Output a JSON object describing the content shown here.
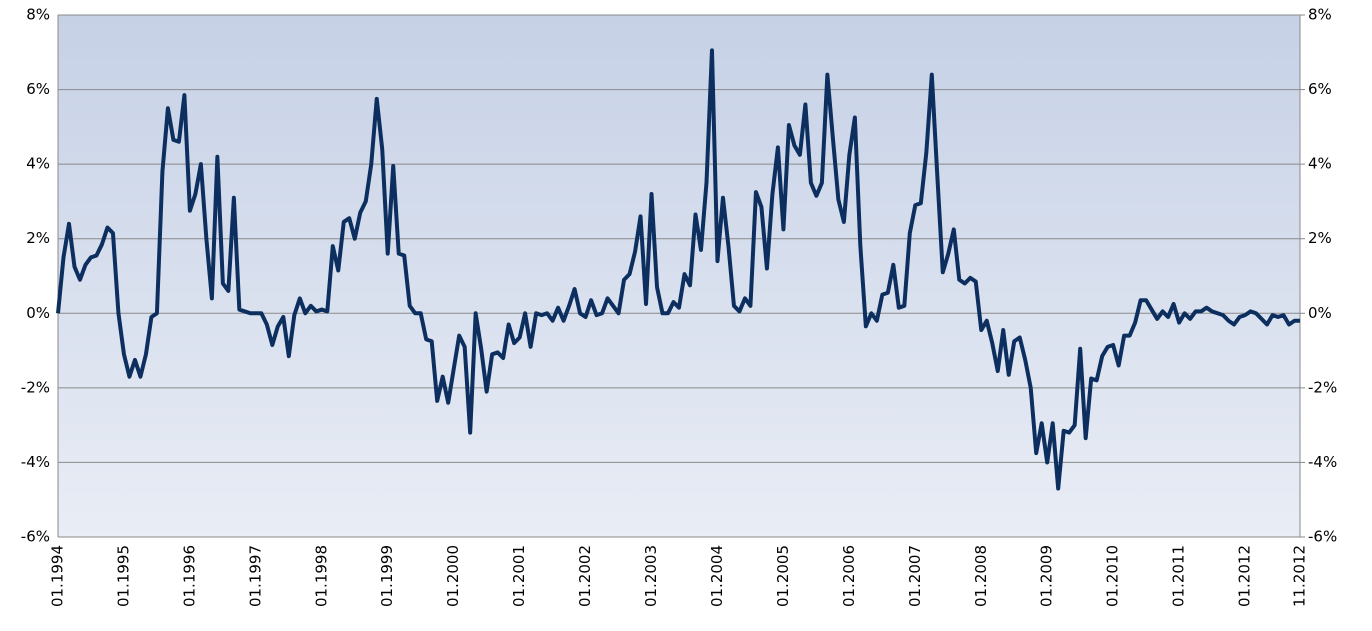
{
  "chart_data": {
    "type": "line",
    "categories": [
      "01.1994",
      null,
      null,
      null,
      null,
      null,
      null,
      null,
      null,
      null,
      null,
      null,
      "01.1995",
      null,
      null,
      null,
      null,
      null,
      null,
      null,
      null,
      null,
      null,
      null,
      "01.1996",
      null,
      null,
      null,
      null,
      null,
      null,
      null,
      null,
      null,
      null,
      null,
      "01.1997",
      null,
      null,
      null,
      null,
      null,
      null,
      null,
      null,
      null,
      null,
      null,
      "01.1998",
      null,
      null,
      null,
      null,
      null,
      null,
      null,
      null,
      null,
      null,
      null,
      "01.1999",
      null,
      null,
      null,
      null,
      null,
      null,
      null,
      null,
      null,
      null,
      null,
      "01.2000",
      null,
      null,
      null,
      null,
      null,
      null,
      null,
      null,
      null,
      null,
      null,
      "01.2001",
      null,
      null,
      null,
      null,
      null,
      null,
      null,
      null,
      null,
      null,
      null,
      "01.2002",
      null,
      null,
      null,
      null,
      null,
      null,
      null,
      null,
      null,
      null,
      null,
      "01.2003",
      null,
      null,
      null,
      null,
      null,
      null,
      null,
      null,
      null,
      null,
      null,
      "01.2004",
      null,
      null,
      null,
      null,
      null,
      null,
      null,
      null,
      null,
      null,
      null,
      "01.2005",
      null,
      null,
      null,
      null,
      null,
      null,
      null,
      null,
      null,
      null,
      null,
      "01.2006",
      null,
      null,
      null,
      null,
      null,
      null,
      null,
      null,
      null,
      null,
      null,
      "01.2007",
      null,
      null,
      null,
      null,
      null,
      null,
      null,
      null,
      null,
      null,
      null,
      "01.2008",
      null,
      null,
      null,
      null,
      null,
      null,
      null,
      null,
      null,
      null,
      null,
      "01.2009",
      null,
      null,
      null,
      null,
      null,
      null,
      null,
      null,
      null,
      null,
      null,
      "01.2010",
      null,
      null,
      null,
      null,
      null,
      null,
      null,
      null,
      null,
      null,
      null,
      "01.2011",
      null,
      null,
      null,
      null,
      null,
      null,
      null,
      null,
      null,
      null,
      null,
      "01.2012",
      null,
      null,
      null,
      null,
      null,
      null,
      null,
      null,
      null,
      "11.2012"
    ],
    "series": [
      {
        "color": "#0d2f5f",
        "values": [
          0,
          1.5,
          2.4,
          1.25,
          0.9,
          1.3,
          1.5,
          1.55,
          1.85,
          2.3,
          2.15,
          0,
          -1.1,
          -1.7,
          -1.25,
          -1.7,
          -1.1,
          -0.1,
          0,
          3.8,
          5.5,
          4.65,
          4.6,
          5.85,
          2.75,
          3.2,
          4.0,
          2.0,
          0.4,
          4.2,
          0.8,
          0.6,
          3.1,
          0.1,
          0.05,
          0,
          0,
          0,
          -0.3,
          -0.85,
          -0.35,
          -0.1,
          -1.15,
          -0.05,
          0.4,
          0,
          0.2,
          0.05,
          0.1,
          0.05,
          1.8,
          1.15,
          2.45,
          2.55,
          2.0,
          2.7,
          3.0,
          4.0,
          5.75,
          4.4,
          1.6,
          3.95,
          1.6,
          1.55,
          0.2,
          0,
          0,
          -0.7,
          -0.75,
          -2.35,
          -1.7,
          -2.4,
          -1.5,
          -0.6,
          -0.9,
          -3.2,
          0,
          -0.95,
          -2.1,
          -1.1,
          -1.05,
          -1.2,
          -0.3,
          -0.8,
          -0.65,
          0,
          -0.9,
          0,
          -0.05,
          0,
          -0.2,
          0.15,
          -0.2,
          0.2,
          0.65,
          0,
          -0.1,
          0.35,
          -0.05,
          0,
          0.4,
          0.2,
          0,
          0.9,
          1.05,
          1.65,
          2.6,
          0.25,
          3.2,
          0.7,
          0,
          0,
          0.3,
          0.15,
          1.05,
          0.75,
          2.65,
          1.7,
          3.5,
          7.05,
          1.4,
          3.1,
          1.8,
          0.2,
          0.05,
          0.4,
          0.2,
          3.25,
          2.85,
          1.2,
          3.2,
          4.45,
          2.25,
          5.05,
          4.5,
          4.25,
          5.6,
          3.5,
          3.15,
          3.5,
          6.4,
          4.7,
          3.05,
          2.45,
          4.25,
          5.25,
          1.8,
          -0.35,
          0,
          -0.2,
          0.5,
          0.55,
          1.3,
          0.15,
          0.2,
          2.15,
          2.9,
          2.95,
          4.3,
          6.4,
          3.7,
          1.1,
          1.6,
          2.25,
          0.9,
          0.8,
          0.95,
          0.85,
          -0.45,
          -0.2,
          -0.8,
          -1.55,
          -0.45,
          -1.65,
          -0.75,
          -0.65,
          -1.25,
          -2.0,
          -3.75,
          -2.95,
          -4.0,
          -2.95,
          -4.7,
          -3.15,
          -3.2,
          -3.0,
          -0.95,
          -3.35,
          -1.75,
          -1.8,
          -1.15,
          -0.9,
          -0.85,
          -1.4,
          -0.6,
          -0.6,
          -0.25,
          0.35,
          0.35,
          0.1,
          -0.15,
          0.05,
          -0.1,
          0.25,
          -0.25,
          0,
          -0.15,
          0.05,
          0.05,
          0.15,
          0.05,
          0,
          -0.05,
          -0.2,
          -0.3,
          -0.1,
          -0.05,
          0.05,
          0,
          -0.15,
          -0.3,
          -0.05,
          -0.1,
          -0.05,
          -0.3,
          -0.2,
          -0.2
        ]
      }
    ],
    "ylim": [
      -6,
      8
    ],
    "yticks": [
      {
        "value": -6,
        "label": "-6%"
      },
      {
        "value": -4,
        "label": "-4%"
      },
      {
        "value": -2,
        "label": "-2%"
      },
      {
        "value": 0,
        "label": "0%"
      },
      {
        "value": 2,
        "label": "2%"
      },
      {
        "value": 4,
        "label": "4%"
      },
      {
        "value": 6,
        "label": "6%"
      },
      {
        "value": 8,
        "label": "8%"
      }
    ],
    "y2lim": [
      -6,
      8
    ],
    "y2ticks": [
      {
        "value": -6,
        "label": "-6%"
      },
      {
        "value": -4,
        "label": "-4%"
      },
      {
        "value": -2,
        "label": "-2%"
      },
      {
        "value": 0,
        "label": "0%"
      },
      {
        "value": 2,
        "label": "2%"
      },
      {
        "value": 4,
        "label": "4%"
      },
      {
        "value": 6,
        "label": "6%"
      },
      {
        "value": 8,
        "label": "8%"
      }
    ],
    "grid": true
  }
}
